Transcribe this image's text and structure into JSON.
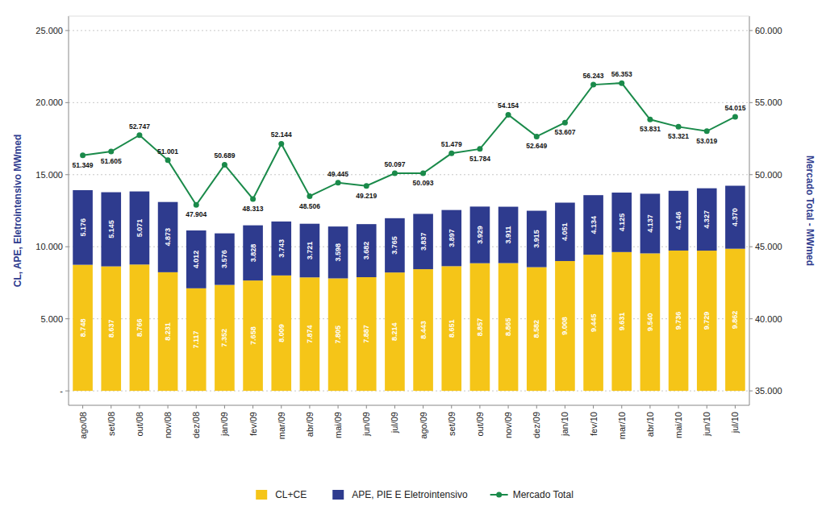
{
  "chart_data": {
    "type": "bar",
    "stacked": true,
    "data_labels": true,
    "grid": true,
    "legend": "bottom",
    "ylabel": "CL, APE, Eletrointensivo MWmed",
    "y2label": "Mercado Total - MWmed",
    "categories": [
      "ago/08",
      "set/08",
      "out/08",
      "nov/08",
      "dez/08",
      "jan/09",
      "fev/09",
      "mar/09",
      "abr/09",
      "mai/09",
      "jun/09",
      "jul/09",
      "ago/09",
      "set/09",
      "out/09",
      "nov/09",
      "dez/09",
      "jan/10",
      "fev/10",
      "mar/10",
      "abr/10",
      "mai/10",
      "jun/10",
      "jul/10"
    ],
    "ylim": [
      -1000,
      26000
    ],
    "yticks": [
      {
        "value": 0,
        "label": "-"
      },
      {
        "value": 5000,
        "label": "5.000"
      },
      {
        "value": 10000,
        "label": "10.000"
      },
      {
        "value": 15000,
        "label": "15.000"
      },
      {
        "value": 20000,
        "label": "20.000"
      },
      {
        "value": 25000,
        "label": "25.000"
      }
    ],
    "y2lim": [
      34000,
      61000
    ],
    "y2ticks": [
      {
        "value": 35000,
        "label": "35.000"
      },
      {
        "value": 40000,
        "label": "40.000"
      },
      {
        "value": 45000,
        "label": "45.000"
      },
      {
        "value": 50000,
        "label": "50.000"
      },
      {
        "value": 55000,
        "label": "55.000"
      },
      {
        "value": 60000,
        "label": "60.000"
      }
    ],
    "series": [
      {
        "name": "CL+CE",
        "type": "bar",
        "color": "#F5C518",
        "values": [
          8748,
          8637,
          8766,
          8231,
          7117,
          7352,
          7658,
          8009,
          7874,
          7805,
          7887,
          8214,
          8443,
          8651,
          8857,
          8865,
          8582,
          9008,
          9445,
          9631,
          9540,
          9736,
          9729,
          9862
        ],
        "value_labels": [
          "8.748",
          "8.637",
          "8.766",
          "8.231",
          "7.117",
          "7.352",
          "7.658",
          "8.009",
          "7.874",
          "7.805",
          "7.887",
          "8.214",
          "8.443",
          "8.651",
          "8.857",
          "8.865",
          "8.582",
          "9.008",
          "9.445",
          "9.631",
          "9.540",
          "9.736",
          "9.729",
          "9.862"
        ]
      },
      {
        "name": "APE, PIE E Eletrointensivo",
        "type": "bar",
        "color": "#2E3B8E",
        "values": [
          5176,
          5145,
          5071,
          4873,
          4012,
          3576,
          3828,
          3743,
          3721,
          3598,
          3682,
          3765,
          3837,
          3897,
          3929,
          3911,
          3915,
          4051,
          4134,
          4125,
          4137,
          4146,
          4327,
          4370
        ],
        "value_labels": [
          "5.176",
          "5.145",
          "5.071",
          "4.873",
          "4.012",
          "3.576",
          "3.828",
          "3.743",
          "3.721",
          "3.598",
          "3.682",
          "3.765",
          "3.837",
          "3.897",
          "3.929",
          "3.911",
          "3.915",
          "4.051",
          "4.134",
          "4.125",
          "4.137",
          "4.146",
          "4.327",
          "4.370"
        ]
      },
      {
        "name": "Mercado Total",
        "type": "line",
        "axis": "y2",
        "color": "#1A8A4A",
        "marker": "circle",
        "values": [
          51349,
          51605,
          52747,
          51001,
          47904,
          50689,
          48313,
          52144,
          48506,
          49445,
          49219,
          50097,
          50093,
          51479,
          51784,
          54154,
          52649,
          53607,
          56243,
          56353,
          53831,
          53321,
          53019,
          54015
        ],
        "value_labels": [
          "51.349",
          "51.605",
          "52.747",
          "51.001",
          "47.904",
          "50.689",
          "48.313",
          "52.144",
          "48.506",
          "49.445",
          "49.219",
          "50.097",
          "50.093",
          "51.479",
          "51.784",
          "54.154",
          "52.649",
          "53.607",
          "56.243",
          "56.353",
          "53.831",
          "53.321",
          "53.019",
          "54.015"
        ]
      }
    ]
  }
}
